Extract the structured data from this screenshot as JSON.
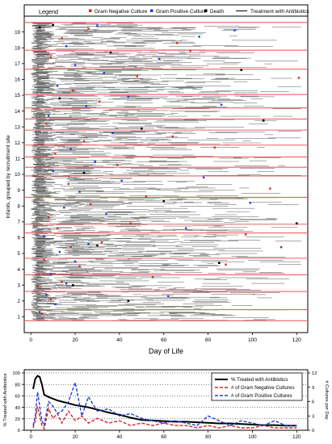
{
  "chart_data": [
    {
      "type": "scatter",
      "xlabel": "Day of Life",
      "ylabel": "Infants, grouped by recruitment site",
      "xlim": [
        -3,
        125
      ],
      "ylim": [
        0,
        20
      ],
      "x_ticks": [
        0,
        20,
        40,
        60,
        80,
        100,
        120
      ],
      "y_ticks": [
        1,
        2,
        3,
        4,
        5,
        6,
        7,
        8,
        9,
        10,
        11,
        12,
        13,
        14,
        15,
        16,
        17,
        18,
        19
      ],
      "legend": {
        "title": "Legend",
        "placement": "top",
        "entries": [
          {
            "label": "Gram Negative Culture",
            "color": "#e02020",
            "marker": "square"
          },
          {
            "label": "Gram Positive Culture",
            "color": "#1f3fd8",
            "marker": "square"
          },
          {
            "label": "Death",
            "color": "#000000",
            "marker": "square"
          },
          {
            "label": "Treatment with Antibiotics",
            "color": "#000000",
            "marker": "line"
          }
        ]
      },
      "site_boundaries": [
        0.75,
        1.45,
        2.6,
        3.65,
        4.7,
        6.3,
        6.85,
        8.55,
        9.9,
        10.45,
        11.1,
        11.85,
        12.8,
        13.5,
        14.2,
        15.05,
        16.65,
        17.85,
        19.6
      ],
      "site_band_color": "#f06060",
      "gram_negative": [
        [
          5,
          1.2
        ],
        [
          9,
          2.1
        ],
        [
          3,
          2.9
        ],
        [
          14,
          3.2
        ],
        [
          22,
          4.2
        ],
        [
          6,
          4.6
        ],
        [
          18,
          5.4
        ],
        [
          32,
          5.7
        ],
        [
          12,
          6.6
        ],
        [
          45,
          6.9
        ],
        [
          8,
          7.3
        ],
        [
          27,
          8.1
        ],
        [
          52,
          8.6
        ],
        [
          17,
          9.4
        ],
        [
          39,
          10.6
        ],
        [
          11,
          11.3
        ],
        [
          24,
          12.1
        ],
        [
          64,
          12.4
        ],
        [
          7,
          13.2
        ],
        [
          31,
          14.6
        ],
        [
          19,
          15.3
        ],
        [
          48,
          16.2
        ],
        [
          9,
          17.4
        ],
        [
          72,
          17.8
        ],
        [
          14,
          18.6
        ],
        [
          66,
          18.3
        ],
        [
          26,
          19.2
        ],
        [
          88,
          4.3
        ],
        [
          97,
          6.2
        ],
        [
          108,
          9.1
        ],
        [
          121,
          16.1
        ],
        [
          55,
          3.5
        ],
        [
          83,
          11.7
        ]
      ],
      "gram_positive": [
        [
          4,
          1.3
        ],
        [
          11,
          1.8
        ],
        [
          7,
          2.4
        ],
        [
          16,
          3.1
        ],
        [
          9,
          3.7
        ],
        [
          20,
          4.5
        ],
        [
          13,
          5.1
        ],
        [
          26,
          5.6
        ],
        [
          6,
          6.1
        ],
        [
          34,
          7.5
        ],
        [
          15,
          7.9
        ],
        [
          22,
          8.9
        ],
        [
          41,
          9.6
        ],
        [
          10,
          10.2
        ],
        [
          29,
          10.8
        ],
        [
          18,
          11.6
        ],
        [
          37,
          12.6
        ],
        [
          8,
          13.7
        ],
        [
          25,
          14.3
        ],
        [
          44,
          14.9
        ],
        [
          12,
          15.6
        ],
        [
          33,
          16.4
        ],
        [
          20,
          16.9
        ],
        [
          58,
          17.3
        ],
        [
          16,
          18.1
        ],
        [
          76,
          18.7
        ],
        [
          30,
          19.4
        ],
        [
          92,
          19.1
        ],
        [
          78,
          9.8
        ],
        [
          99,
          8.2
        ],
        [
          113,
          5.4
        ],
        [
          86,
          14.4
        ],
        [
          62,
          2.3
        ],
        [
          70,
          6.6
        ]
      ],
      "deaths": [
        [
          44,
          2.0
        ],
        [
          19,
          3.0
        ],
        [
          85,
          4.4
        ],
        [
          30,
          5.5
        ],
        [
          60,
          8.3
        ],
        [
          24,
          10.1
        ],
        [
          50,
          12.9
        ],
        [
          13,
          14.8
        ],
        [
          95,
          16.6
        ],
        [
          36,
          17.7
        ],
        [
          4,
          19.3
        ],
        [
          10,
          19.45
        ],
        [
          120,
          6.9
        ],
        [
          105,
          13.4
        ]
      ]
    },
    {
      "type": "line",
      "xlabel": "",
      "ylabel": "% Treated with Antibiotics",
      "ylabel_right": "# Cultures per Day",
      "xlim": [
        -3,
        125
      ],
      "ylim": [
        0,
        100
      ],
      "ylim_right": [
        0,
        12
      ],
      "x_ticks": [
        0,
        20,
        40,
        60,
        80,
        100,
        120
      ],
      "y_ticks": [
        0,
        20,
        40,
        60,
        80,
        100
      ],
      "y_ticks_right": [
        0,
        3,
        6,
        9,
        12
      ],
      "grid": "horizontal dotted",
      "legend": {
        "placement": "top-right"
      },
      "x": [
        1,
        2,
        3,
        4,
        5,
        6,
        8,
        10,
        12,
        14,
        17,
        20,
        23,
        26,
        30,
        35,
        40,
        45,
        50,
        55,
        60,
        65,
        70,
        75,
        80,
        85,
        90,
        95,
        100,
        105,
        110,
        115,
        120
      ],
      "series": [
        {
          "name": "% Treated with Antibiotics",
          "color": "#000000",
          "style": "solid",
          "axis": "left",
          "values": [
            72,
            90,
            95,
            93,
            80,
            62,
            58,
            55,
            52,
            50,
            47,
            44,
            42,
            40,
            36,
            31,
            27,
            22,
            18,
            17,
            16,
            15,
            15,
            14,
            13,
            12,
            12,
            11,
            10,
            9,
            9,
            8,
            8
          ]
        },
        {
          "name": "# of Gram Negative Cultures",
          "color": "#e02020",
          "style": "dashed",
          "axis": "right",
          "values": [
            0.5,
            2.0,
            5.0,
            3.0,
            1.0,
            0.3,
            4.5,
            2.5,
            3.5,
            1.5,
            4.0,
            2.0,
            3.0,
            1.5,
            2.5,
            1.5,
            2.0,
            1.0,
            1.5,
            1.0,
            1.5,
            1.0,
            1.0,
            0.5,
            1.0,
            0.5,
            1.0,
            0.5,
            0.5,
            1.0,
            0.5,
            0.5,
            0.5
          ]
        },
        {
          "name": "# of Gram Positive Cultures",
          "color": "#1f3fd8",
          "style": "dashed",
          "axis": "right",
          "values": [
            1.0,
            3.0,
            8.0,
            5.0,
            2.0,
            1.0,
            6.0,
            5.0,
            3.5,
            4.0,
            6.0,
            10.0,
            3.0,
            7.0,
            4.0,
            4.5,
            3.0,
            3.5,
            2.5,
            2.0,
            1.5,
            2.0,
            1.5,
            1.0,
            3.0,
            2.0,
            1.0,
            2.0,
            1.5,
            1.0,
            2.0,
            1.0,
            1.0
          ]
        }
      ]
    }
  ]
}
